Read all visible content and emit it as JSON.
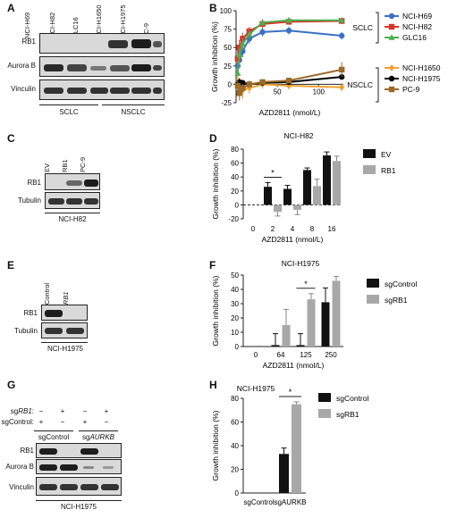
{
  "panel_letters": {
    "a": "A",
    "b": "B",
    "c": "C",
    "d": "D",
    "e": "E",
    "f": "F",
    "g": "G",
    "h": "H"
  },
  "panel_a": {
    "lanes": [
      "NCI-H69",
      "NCI-H82",
      "GLC16",
      "NCI-H1650",
      "NCI-H1975",
      "PC-9"
    ],
    "rows": [
      "RB1",
      "Aurora B",
      "Vinculin"
    ],
    "groups": [
      "SCLC",
      "NSCLC"
    ]
  },
  "panel_c": {
    "lanes": [
      "EV",
      "RB1",
      "PC-9"
    ],
    "rows": [
      "RB1",
      "Tubulin"
    ],
    "cell_line": "NCI-H82"
  },
  "panel_e": {
    "lanes": [
      "sgControl",
      "sgRB1"
    ],
    "rows": [
      "RB1",
      "Tubulin"
    ],
    "cell_line": "NCI-H1975"
  },
  "panel_g": {
    "row_labels": [
      "sgRB1:",
      "sgControl:"
    ],
    "sg_rb1": [
      "−",
      "+",
      "−",
      "+"
    ],
    "sg_control": [
      "+",
      "−",
      "+",
      "−"
    ],
    "groups": [
      "sgControl",
      "sgAURKB"
    ],
    "rows": [
      "RB1",
      "Aurora B",
      "Vinculin"
    ],
    "cell_line": "NCI-H1975"
  },
  "chart_data": [
    {
      "panel": "B",
      "type": "line",
      "xlabel": "AZD2811 (nmol/L)",
      "ylabel": "Growth inhibition (%)",
      "xlim": [
        0,
        130
      ],
      "ylim": [
        -25,
        100
      ],
      "xticks": [
        50,
        100
      ],
      "yticks": [
        -25,
        0,
        25,
        50,
        75,
        100
      ],
      "x": [
        2,
        4,
        8,
        16,
        32,
        64,
        128
      ],
      "group_labels": [
        "SCLC",
        "NSCLC"
      ],
      "series": [
        {
          "name": "NCI-H69",
          "group": "SCLC",
          "color": "#3a6fc4",
          "marker": "circle",
          "values": [
            25,
            33,
            45,
            62,
            71,
            73,
            66
          ],
          "err": [
            10,
            8,
            8,
            7,
            6,
            5,
            5
          ]
        },
        {
          "name": "NCI-H82",
          "group": "SCLC",
          "color": "#d9342b",
          "marker": "square",
          "values": [
            35,
            50,
            62,
            72,
            82,
            85,
            86
          ],
          "err": [
            12,
            10,
            8,
            6,
            5,
            4,
            3
          ]
        },
        {
          "name": "GLC16",
          "group": "SCLC",
          "color": "#4caf50",
          "marker": "triangle",
          "values": [
            15,
            40,
            55,
            68,
            84,
            87,
            87
          ],
          "err": [
            8,
            10,
            8,
            6,
            5,
            4,
            3
          ]
        },
        {
          "name": "NCI-H1650",
          "group": "NSCLC",
          "color": "#f0a030",
          "marker": "diamond",
          "values": [
            2,
            -3,
            -8,
            -5,
            0,
            -2,
            -4
          ],
          "err": [
            10,
            12,
            12,
            8,
            6,
            5,
            5
          ]
        },
        {
          "name": "NCI-H1975",
          "group": "NSCLC",
          "color": "#000000",
          "marker": "circle",
          "values": [
            0,
            3,
            2,
            0,
            2,
            3,
            10
          ],
          "err": [
            4,
            5,
            4,
            3,
            3,
            3,
            3
          ]
        },
        {
          "name": "PC-9",
          "group": "NSCLC",
          "color": "#9a6a2a",
          "marker": "square",
          "values": [
            -2,
            -12,
            -5,
            0,
            3,
            5,
            20
          ],
          "err": [
            8,
            10,
            6,
            5,
            4,
            4,
            10
          ]
        }
      ]
    },
    {
      "panel": "D",
      "type": "bar",
      "title": "NCI-H82",
      "xlabel": "AZD2811 (nmol/L)",
      "ylabel": "Growth inhibition (%)",
      "categories": [
        "0",
        "2",
        "4",
        "8",
        "16"
      ],
      "ylim": [
        -20,
        80
      ],
      "yticks": [
        -20,
        0,
        20,
        40,
        60,
        80
      ],
      "series": [
        {
          "name": "EV",
          "color": "#111111",
          "values": [
            0,
            26,
            23,
            50,
            71
          ],
          "err": [
            0,
            6,
            5,
            3,
            5
          ]
        },
        {
          "name": "RB1",
          "color": "#a8a8a8",
          "values": [
            0,
            -10,
            -7,
            27,
            63
          ],
          "err": [
            0,
            6,
            7,
            10,
            7
          ]
        }
      ],
      "significance": [
        {
          "category": "2",
          "label": "*"
        }
      ]
    },
    {
      "panel": "F",
      "type": "bar",
      "title": "NCI-H1975",
      "xlabel": "AZD2811 (nmol/L)",
      "ylabel": "Growth inhibition (%)",
      "categories": [
        "0",
        "64",
        "125",
        "250"
      ],
      "ylim": [
        0,
        50
      ],
      "yticks": [
        0,
        10,
        20,
        30,
        40,
        50
      ],
      "series": [
        {
          "name": "sgControl",
          "color": "#111111",
          "values": [
            0,
            1,
            1,
            31
          ],
          "err": [
            0,
            8,
            8,
            10
          ]
        },
        {
          "name": "sgRB1",
          "color": "#a8a8a8",
          "values": [
            0,
            15,
            33,
            46
          ],
          "err": [
            0,
            11,
            4,
            3
          ]
        }
      ],
      "significance": [
        {
          "category": "125",
          "label": "*"
        }
      ]
    },
    {
      "panel": "H",
      "type": "bar",
      "title": "NCI-H1975",
      "xlabel": "",
      "ylabel": "Growth inhibition (%)",
      "categories": [
        "sgControl",
        "sgAURKB"
      ],
      "ylim": [
        0,
        80
      ],
      "yticks": [
        0,
        20,
        40,
        60,
        80
      ],
      "series": [
        {
          "name": "sgControl",
          "color": "#111111",
          "values": [
            0,
            33
          ],
          "err": [
            0,
            5
          ]
        },
        {
          "name": "sgRB1",
          "color": "#a8a8a8",
          "values": [
            0,
            75
          ],
          "err": [
            0,
            2
          ]
        }
      ],
      "significance": [
        {
          "category": "sgAURKB",
          "label": "*"
        }
      ]
    }
  ]
}
